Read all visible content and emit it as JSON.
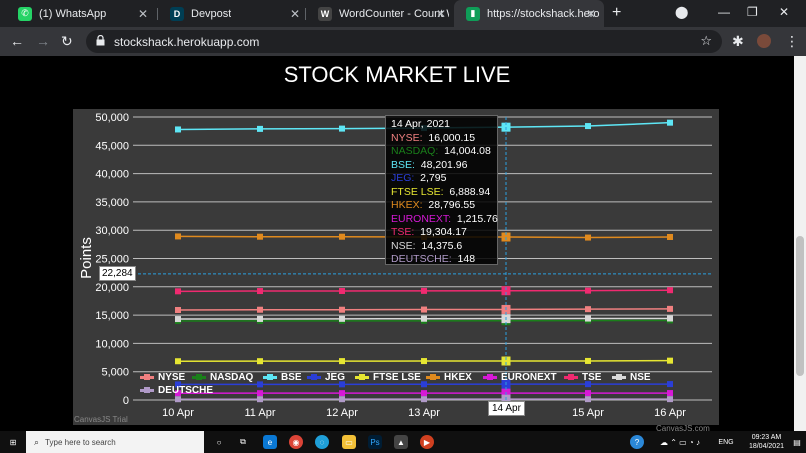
{
  "browser": {
    "tabs": [
      {
        "title": "(1) WhatsApp",
        "icon": "whatsapp-icon",
        "color": "#25D366",
        "glyph": "✆"
      },
      {
        "title": "Devpost",
        "icon": "devpost-icon",
        "color": "#003e54",
        "glyph": "D"
      },
      {
        "title": "WordCounter - Count W",
        "icon": "wordcounter-icon",
        "color": "#444444",
        "glyph": "W"
      },
      {
        "title": "https://stockshack.herok",
        "icon": "chart-favicon",
        "color": "#0f9d58",
        "glyph": "▮"
      }
    ],
    "url": "stockshack.herokuapp.com"
  },
  "page": {
    "title": "STOCK MARKET LIVE"
  },
  "chart_data": {
    "type": "line",
    "title": "",
    "xlabel": "",
    "ylabel": "Points",
    "categories": [
      "10 Apr",
      "11 Apr",
      "12 Apr",
      "13 Apr",
      "14 Apr",
      "15 Apr",
      "16 Apr"
    ],
    "ylim": [
      0,
      50000
    ],
    "yticks": [
      "0",
      "5,000",
      "10,000",
      "15,000",
      "20,000",
      "25,000",
      "30,000",
      "35,000",
      "40,000",
      "45,000",
      "50,000"
    ],
    "grid": true,
    "legend": "bottom",
    "series": [
      {
        "name": "NYSE",
        "color": "#f08080",
        "values": [
          15900,
          15950,
          15950,
          15980,
          16000.15,
          16050,
          16100
        ]
      },
      {
        "name": "NASDAQ",
        "color": "#1a7f1a",
        "values": [
          13950,
          13980,
          13980,
          13990,
          14004.08,
          14020,
          14050
        ]
      },
      {
        "name": "BSE",
        "color": "#5ee6f5",
        "values": [
          47800,
          47900,
          47950,
          48050,
          48201.96,
          48400,
          49000
        ]
      },
      {
        "name": "JEG",
        "color": "#2a3ed8",
        "values": [
          2750,
          2760,
          2770,
          2780,
          2795,
          2800,
          2810
        ]
      },
      {
        "name": "FTSE LSE",
        "color": "#e6e632",
        "values": [
          6850,
          6860,
          6870,
          6880,
          6888.94,
          6900,
          6950
        ]
      },
      {
        "name": "HKEX",
        "color": "#e08a1e",
        "values": [
          28900,
          28850,
          28850,
          28800,
          28796.55,
          28700,
          28800
        ]
      },
      {
        "name": "EURONEXT",
        "color": "#d619d6",
        "values": [
          1200,
          1205,
          1210,
          1212,
          1215.76,
          1220,
          1225
        ]
      },
      {
        "name": "TSE",
        "color": "#f02a70",
        "values": [
          19200,
          19250,
          19260,
          19280,
          19304.17,
          19320,
          19400
        ]
      },
      {
        "name": "NSE",
        "color": "#d8d8d8",
        "values": [
          14300,
          14320,
          14340,
          14360,
          14375.6,
          14390,
          14400
        ]
      },
      {
        "name": "DEUTSCHE",
        "color": "#b09ac8",
        "values": [
          140,
          142,
          144,
          146,
          148,
          150,
          152
        ]
      }
    ],
    "tooltip": {
      "date": "14 Apr, 2021",
      "rows": [
        {
          "name": "NYSE",
          "value": "16,000.15"
        },
        {
          "name": "NASDAQ",
          "value": "14,004.08"
        },
        {
          "name": "BSE",
          "value": "48,201.96"
        },
        {
          "name": "JEG",
          "value": "2,795"
        },
        {
          "name": "FTSE LSE",
          "value": "6,888.94"
        },
        {
          "name": "HKEX",
          "value": "28,796.55"
        },
        {
          "name": "EURONEXT",
          "value": "1,215.76"
        },
        {
          "name": "TSE",
          "value": "19,304.17"
        },
        {
          "name": "NSE",
          "value": "14,375.6"
        },
        {
          "name": "DEUTSCHE",
          "value": "148"
        }
      ]
    },
    "crosshair": {
      "y_value": 22284,
      "y_label": "22,284",
      "x_label": "14 Apr"
    },
    "watermark_left": "CanvasJS Trial",
    "watermark_right": "CanvasJS.com"
  },
  "taskbar": {
    "search_placeholder": "Type here to search",
    "time": "09:23 AM",
    "date": "18/04/2021",
    "lang": "ENG"
  }
}
